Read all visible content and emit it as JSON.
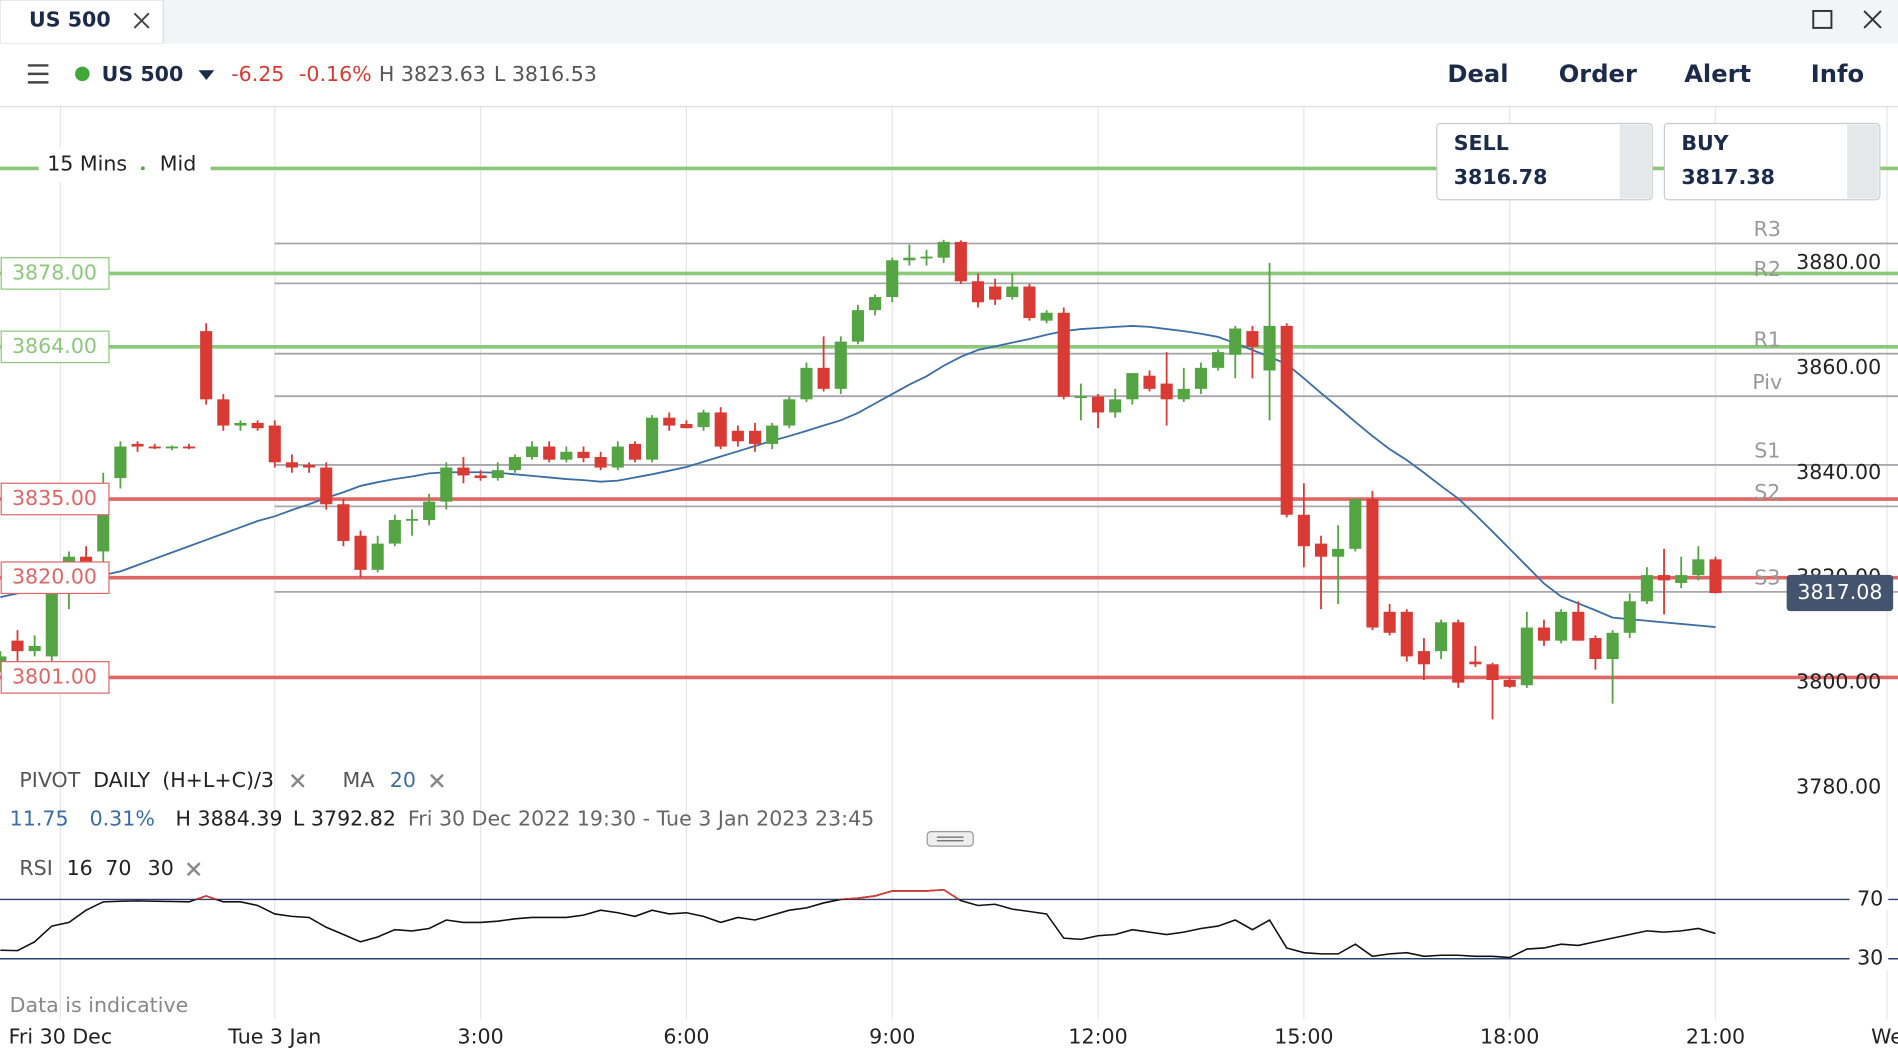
{
  "window": {
    "tab": "US 500"
  },
  "toolbar": {
    "market": "US 500",
    "change": "-6.25",
    "change_pct": "-0.16%",
    "high": "H 3823.63",
    "low": "L 3816.53",
    "menu": [
      "Deal",
      "Order",
      "Alert",
      "Info"
    ]
  },
  "quote": {
    "sell_label": "SELL",
    "sell": "3816.78",
    "buy_label": "BUY",
    "buy": "3817.38"
  },
  "chart_data": {
    "type": "candlestick",
    "interval": "15 Mins",
    "price_type": "Mid",
    "xlim": [
      -0.02,
      110.64
    ],
    "xticks": [
      {
        "value": 3.5,
        "label": "Fri 30 Dec"
      },
      {
        "value": 16,
        "label": "Tue 3 Jan"
      },
      {
        "value": 28,
        "label": "3:00"
      },
      {
        "value": 40,
        "label": "6:00"
      },
      {
        "value": 52,
        "label": "9:00"
      },
      {
        "value": 64,
        "label": "12:00"
      },
      {
        "value": 76,
        "label": "15:00"
      },
      {
        "value": 88,
        "label": "18:00"
      },
      {
        "value": 100,
        "label": "21:00"
      },
      {
        "value": 110,
        "label": "We"
      }
    ],
    "ylim": [
      3768.6,
      3909.8
    ],
    "yticks": [
      {
        "value": 3880,
        "label": "3880.00"
      },
      {
        "value": 3860,
        "label": "3860.00"
      },
      {
        "value": 3840,
        "label": "3840.00"
      },
      {
        "value": 3820,
        "label": "3820.00"
      },
      {
        "value": 3800,
        "label": "3800.00"
      },
      {
        "value": 3780,
        "label": "3780.00"
      }
    ],
    "colors": {
      "up": "#55a443",
      "down": "#d93a33"
    },
    "candles": [
      [
        3803,
        3806,
        3802,
        3805
      ],
      [
        3808,
        3810,
        3804,
        3806
      ],
      [
        3806,
        3809,
        3805,
        3807
      ],
      [
        3805,
        3819,
        3804,
        3817
      ],
      [
        3817,
        3825,
        3814,
        3824
      ],
      [
        3824,
        3826,
        3818,
        3820
      ],
      [
        3825,
        3840,
        3823,
        3838
      ],
      [
        3839,
        3846,
        3837,
        3845
      ],
      [
        3845.5,
        3846,
        3844,
        3845
      ],
      [
        3845,
        3845.5,
        3844.5,
        3844.8
      ],
      [
        3844.8,
        3845.2,
        3844.3,
        3845
      ],
      [
        3845,
        3845.5,
        3844.5,
        3844.8
      ],
      [
        3867,
        3868.5,
        3853,
        3854
      ],
      [
        3854,
        3855,
        3848,
        3849
      ],
      [
        3849,
        3850,
        3848,
        3849.5
      ],
      [
        3849.5,
        3850,
        3848,
        3848.5
      ],
      [
        3849,
        3850,
        3841,
        3842
      ],
      [
        3842,
        3843.5,
        3840,
        3841
      ],
      [
        3841.5,
        3842,
        3840,
        3841
      ],
      [
        3841,
        3842,
        3833,
        3834
      ],
      [
        3834,
        3835,
        3826,
        3827
      ],
      [
        3828,
        3829,
        3820,
        3821.5
      ],
      [
        3821.5,
        3828,
        3821,
        3826.5
      ],
      [
        3826.5,
        3832,
        3826,
        3831
      ],
      [
        3831,
        3833,
        3828,
        3831.2
      ],
      [
        3831,
        3836,
        3830,
        3834.5
      ],
      [
        3834.5,
        3842,
        3833,
        3841
      ],
      [
        3841,
        3843,
        3838,
        3839.5
      ],
      [
        3839.5,
        3840.5,
        3838.5,
        3839
      ],
      [
        3839,
        3842,
        3838.5,
        3840.5
      ],
      [
        3840.5,
        3843.5,
        3840,
        3843
      ],
      [
        3843,
        3846,
        3842.5,
        3845
      ],
      [
        3845,
        3846,
        3842,
        3842.5
      ],
      [
        3842.5,
        3845,
        3842,
        3844
      ],
      [
        3844,
        3845,
        3842,
        3842.8
      ],
      [
        3843,
        3844,
        3840.5,
        3841
      ],
      [
        3841,
        3846,
        3840.5,
        3845
      ],
      [
        3845.5,
        3846,
        3842,
        3842.5
      ],
      [
        3842.5,
        3851,
        3842,
        3850.5
      ],
      [
        3850.5,
        3851.5,
        3848,
        3849
      ],
      [
        3849.3,
        3850,
        3848.5,
        3848.5
      ],
      [
        3848.7,
        3852,
        3848,
        3851.5
      ],
      [
        3851.5,
        3852.5,
        3844.5,
        3845
      ],
      [
        3848,
        3849,
        3845,
        3846
      ],
      [
        3848,
        3849.5,
        3844,
        3845.5
      ],
      [
        3845.5,
        3849.5,
        3844.5,
        3849
      ],
      [
        3849,
        3854.5,
        3848.5,
        3854
      ],
      [
        3854,
        3861,
        3853.5,
        3860
      ],
      [
        3860,
        3866,
        3855.5,
        3856
      ],
      [
        3856,
        3866,
        3855,
        3865
      ],
      [
        3865,
        3872,
        3864.5,
        3871
      ],
      [
        3871,
        3874,
        3870,
        3873.5
      ],
      [
        3873.5,
        3881,
        3872.5,
        3880.5
      ],
      [
        3880.5,
        3883.5,
        3879.5,
        3881
      ],
      [
        3881,
        3882.5,
        3879.5,
        3881.2
      ],
      [
        3881,
        3884.4,
        3880,
        3884
      ],
      [
        3884,
        3884.3,
        3876,
        3876.5
      ],
      [
        3876.5,
        3878,
        3871.5,
        3872.5
      ],
      [
        3875.5,
        3877,
        3872,
        3873
      ],
      [
        3873.5,
        3878,
        3873,
        3875.5
      ],
      [
        3875.5,
        3876,
        3869,
        3869.5
      ],
      [
        3869,
        3871,
        3868.5,
        3870.5
      ],
      [
        3870.5,
        3871.5,
        3854,
        3854.5
      ],
      [
        3854.5,
        3857,
        3850,
        3854.6
      ],
      [
        3854.5,
        3855,
        3848.5,
        3851.5
      ],
      [
        3851.5,
        3856,
        3850.5,
        3854
      ],
      [
        3854,
        3859,
        3853,
        3859
      ],
      [
        3858.5,
        3859.5,
        3855.5,
        3856
      ],
      [
        3857,
        3863,
        3849,
        3854
      ],
      [
        3854,
        3860,
        3853.5,
        3856
      ],
      [
        3856,
        3861,
        3855,
        3860
      ],
      [
        3860,
        3863.5,
        3859.5,
        3863
      ],
      [
        3862.5,
        3868,
        3858,
        3867.5
      ],
      [
        3867,
        3868,
        3858,
        3864
      ],
      [
        3859.5,
        3880,
        3850,
        3868
      ],
      [
        3868,
        3868.5,
        3831.5,
        3832
      ],
      [
        3832,
        3838,
        3822,
        3826
      ],
      [
        3826.5,
        3828,
        3814,
        3824
      ],
      [
        3824,
        3830,
        3815,
        3825.5
      ],
      [
        3825.5,
        3835,
        3825,
        3835
      ],
      [
        3835,
        3836.5,
        3810,
        3810.5
      ],
      [
        3813.5,
        3815,
        3809,
        3809.5
      ],
      [
        3813.5,
        3814,
        3804,
        3805
      ],
      [
        3806,
        3808.5,
        3800.5,
        3803.5
      ],
      [
        3806,
        3812,
        3804.5,
        3811.5
      ],
      [
        3811.5,
        3812,
        3799,
        3800
      ],
      [
        3804,
        3807,
        3803,
        3803.5
      ],
      [
        3803.5,
        3803.8,
        3793,
        3800.5
      ],
      [
        3800.5,
        3801,
        3799,
        3799.2
      ],
      [
        3799.5,
        3813.5,
        3799,
        3810.5
      ],
      [
        3810.5,
        3812,
        3807,
        3808
      ],
      [
        3808,
        3814,
        3807.5,
        3813.5
      ],
      [
        3813.5,
        3815.5,
        3808,
        3808
      ],
      [
        3808.5,
        3809,
        3802.5,
        3804.5
      ],
      [
        3804.5,
        3810,
        3796,
        3809.5
      ],
      [
        3809.5,
        3817,
        3808.5,
        3815.5
      ],
      [
        3815.5,
        3822,
        3815,
        3820.5
      ],
      [
        3820.5,
        3825.5,
        3813,
        3819.5
      ],
      [
        3819,
        3824,
        3818,
        3820.5
      ],
      [
        3820.5,
        3826,
        3819.5,
        3823.5
      ],
      [
        3823.5,
        3824,
        3817,
        3817.08
      ]
    ],
    "levels": [
      {
        "value": 3898,
        "color": "#8cc87a"
      },
      {
        "value": 3878,
        "label": "3878.00",
        "color": "#8cc87a"
      },
      {
        "value": 3864,
        "label": "3864.00",
        "color": "#8cc87a"
      },
      {
        "value": 3835,
        "label": "3835.00",
        "color": "#e06666"
      },
      {
        "value": 3820,
        "label": "3820.00",
        "color": "#e06666"
      },
      {
        "value": 3801,
        "label": "3801.00",
        "color": "#e06666"
      }
    ],
    "pivots": {
      "indicator": "PIVOT",
      "period": "DAILY",
      "formula": "(H+L+C)/3",
      "start": 16,
      "lines": [
        {
          "name": "R3",
          "value": 3883.7
        },
        {
          "name": "R2",
          "value": 3876.1
        },
        {
          "name": "R1",
          "value": 3862.7
        },
        {
          "name": "Piv",
          "value": 3854.6
        },
        {
          "name": "S1",
          "value": 3841.5
        },
        {
          "name": "S2",
          "value": 3833.6
        },
        {
          "name": "S3",
          "value": 3817.3
        }
      ]
    },
    "ma": {
      "name": "MA",
      "period": 20,
      "color": "#3a6ea5",
      "values": [
        3816.3,
        3817.0,
        3817.7,
        3818.4,
        3819.1,
        3819.8,
        3820.5,
        3821.2,
        3822.4,
        3823.6,
        3824.8,
        3826.0,
        3827.2,
        3828.4,
        3829.6,
        3830.8,
        3831.7,
        3832.9,
        3834.0,
        3835.2,
        3836.3,
        3837.5,
        3838.2,
        3838.8,
        3839.3,
        3839.9,
        3840.1,
        3840.1,
        3840.1,
        3840.0,
        3839.7,
        3839.4,
        3839.1,
        3838.8,
        3838.6,
        3838.3,
        3838.5,
        3839.1,
        3839.7,
        3840.4,
        3841.1,
        3842.1,
        3843.1,
        3844.1,
        3845.1,
        3846.1,
        3847.0,
        3848.0,
        3849.0,
        3850.0,
        3851.4,
        3853.2,
        3855.0,
        3856.8,
        3858.4,
        3860.4,
        3862.1,
        3863.4,
        3864.1,
        3864.8,
        3865.5,
        3866.3,
        3867.0,
        3867.4,
        3867.6,
        3867.8,
        3868.0,
        3867.8,
        3867.4,
        3867.0,
        3866.5,
        3865.9,
        3864.7,
        3863.4,
        3862.1,
        3860.7,
        3858.0,
        3855.2,
        3852.5,
        3849.7,
        3847.0,
        3844.5,
        3842.4,
        3840.0,
        3837.5,
        3835.1,
        3832.0,
        3828.8,
        3825.5,
        3822.2,
        3818.9,
        3816.4,
        3815.1,
        3813.8,
        3812.4,
        3812.1,
        3811.8,
        3811.5,
        3811.2,
        3810.9,
        3810.6
      ]
    },
    "last_price": 3817.08,
    "stats": {
      "change": "11.75",
      "change_pct": "0.31%",
      "high": "H 3884.39",
      "low": "L 3792.82",
      "range": "Fri 30 Dec 2022 19:30 - Tue 3 Jan 2023 23:45"
    },
    "rsi": {
      "name": "RSI",
      "period": 16,
      "upper": 70,
      "lower": 30,
      "ylim": [
        0,
        100
      ],
      "values": [
        35.7,
        35.5,
        41.4,
        52.0,
        54.5,
        62.7,
        68.4,
        68.8,
        69.0,
        68.8,
        68.6,
        68.4,
        72.4,
        68.4,
        68.4,
        65.9,
        60.2,
        58.6,
        57.8,
        51.2,
        46.3,
        41.4,
        44.7,
        49.6,
        48.8,
        50.4,
        56.1,
        54.5,
        54.5,
        55.3,
        56.9,
        57.8,
        57.8,
        57.8,
        59.4,
        62.7,
        61.0,
        58.6,
        62.7,
        60.2,
        61.0,
        58.6,
        54.5,
        57.8,
        56.1,
        59.4,
        62.7,
        64.3,
        67.6,
        70.0,
        70.8,
        72.4,
        75.7,
        75.7,
        75.7,
        76.5,
        69.2,
        65.9,
        66.7,
        63.5,
        61.8,
        60.2,
        43.9,
        43.1,
        45.5,
        46.3,
        49.6,
        48.0,
        46.3,
        48.0,
        50.4,
        52.0,
        56.1,
        49.6,
        56.1,
        37.3,
        34.1,
        33.3,
        33.3,
        39.8,
        31.6,
        33.3,
        34.1,
        31.6,
        32.4,
        32.4,
        31.6,
        31.6,
        30.8,
        36.5,
        37.3,
        39.8,
        39.0,
        41.4,
        43.9,
        46.3,
        48.8,
        48.0,
        48.8,
        50.4,
        47.1
      ]
    },
    "note": "Data is indicative"
  }
}
